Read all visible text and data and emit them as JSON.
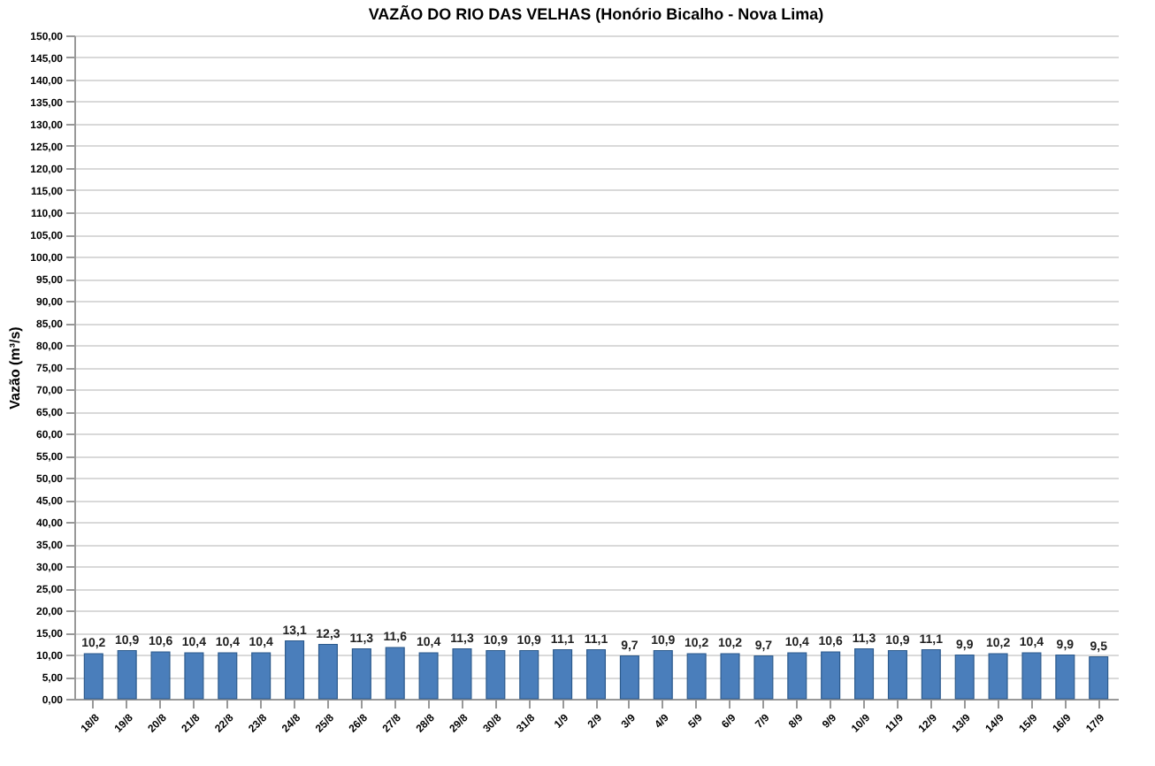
{
  "chart_data": {
    "type": "bar",
    "title": "VAZÃO DO RIO DAS VELHAS (Honório Bicalho - Nova Lima)",
    "ylabel": "Vazão (m³/s)",
    "categories": [
      "18/8",
      "19/8",
      "20/8",
      "21/8",
      "22/8",
      "23/8",
      "24/8",
      "25/8",
      "26/8",
      "27/8",
      "28/8",
      "29/8",
      "30/8",
      "31/8",
      "1/9",
      "2/9",
      "3/9",
      "4/9",
      "5/9",
      "6/9",
      "7/9",
      "8/9",
      "9/9",
      "10/9",
      "11/9",
      "12/9",
      "13/9",
      "14/9",
      "15/9",
      "16/9",
      "17/9"
    ],
    "values": [
      10.2,
      10.9,
      10.6,
      10.4,
      10.4,
      10.4,
      13.1,
      12.3,
      11.3,
      11.6,
      10.4,
      11.3,
      10.9,
      10.9,
      11.1,
      11.1,
      9.7,
      10.9,
      10.2,
      10.2,
      9.7,
      10.4,
      10.6,
      11.3,
      10.9,
      11.1,
      9.9,
      10.2,
      10.4,
      9.9,
      9.5
    ],
    "value_labels": [
      "10,2",
      "10,9",
      "10,6",
      "10,4",
      "10,4",
      "10,4",
      "13,1",
      "12,3",
      "11,3",
      "11,6",
      "10,4",
      "11,3",
      "10,9",
      "10,9",
      "11,1",
      "11,1",
      "9,7",
      "10,9",
      "10,2",
      "10,2",
      "9,7",
      "10,4",
      "10,6",
      "11,3",
      "10,9",
      "11,1",
      "9,9",
      "10,2",
      "10,4",
      "9,9",
      "9,5"
    ],
    "color": "#4a7ebb",
    "ylim": [
      0,
      150
    ],
    "yticks": [
      {
        "value": 0,
        "label": "0,00"
      },
      {
        "value": 5,
        "label": "5,00"
      },
      {
        "value": 10,
        "label": "10,00"
      },
      {
        "value": 15,
        "label": "15,00"
      },
      {
        "value": 20,
        "label": "20,00"
      },
      {
        "value": 25,
        "label": "25,00"
      },
      {
        "value": 30,
        "label": "30,00"
      },
      {
        "value": 35,
        "label": "35,00"
      },
      {
        "value": 40,
        "label": "40,00"
      },
      {
        "value": 45,
        "label": "45,00"
      },
      {
        "value": 50,
        "label": "50,00"
      },
      {
        "value": 55,
        "label": "55,00"
      },
      {
        "value": 60,
        "label": "60,00"
      },
      {
        "value": 65,
        "label": "65,00"
      },
      {
        "value": 70,
        "label": "70,00"
      },
      {
        "value": 75,
        "label": "75,00"
      },
      {
        "value": 80,
        "label": "80,00"
      },
      {
        "value": 85,
        "label": "85,00"
      },
      {
        "value": 90,
        "label": "90,00"
      },
      {
        "value": 95,
        "label": "95,00"
      },
      {
        "value": 100,
        "label": "100,00"
      },
      {
        "value": 105,
        "label": "105,00"
      },
      {
        "value": 110,
        "label": "110,00"
      },
      {
        "value": 115,
        "label": "115,00"
      },
      {
        "value": 120,
        "label": "120,00"
      },
      {
        "value": 125,
        "label": "125,00"
      },
      {
        "value": 130,
        "label": "130,00"
      },
      {
        "value": 135,
        "label": "135,00"
      },
      {
        "value": 140,
        "label": "140,00"
      },
      {
        "value": 145,
        "label": "145,00"
      },
      {
        "value": 150,
        "label": "150,00"
      }
    ],
    "grid": "y"
  }
}
